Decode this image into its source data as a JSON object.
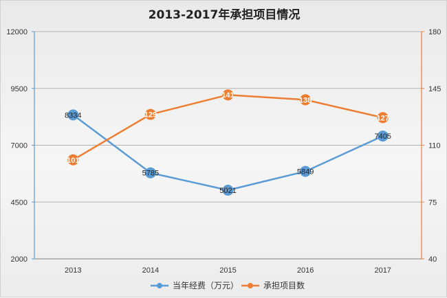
{
  "chart_data": {
    "type": "line",
    "title": "2013-2017年承担项目情况",
    "categories": [
      "2013",
      "2014",
      "2015",
      "2016",
      "2017"
    ],
    "y_left": {
      "min": 2000,
      "max": 12000,
      "ticks": [
        "2000",
        "4500",
        "7000",
        "9500",
        "12000"
      ]
    },
    "y_right": {
      "min": 40,
      "max": 180,
      "ticks": [
        "40",
        "75",
        "110",
        "145",
        "180"
      ]
    },
    "series": [
      {
        "name": "当年经费（万元）",
        "axis": "left",
        "color": "#5b9bd5",
        "values": [
          8334,
          5785,
          5021,
          5849,
          7405
        ]
      },
      {
        "name": "承担项目数",
        "axis": "right",
        "color": "#ed7d31",
        "values": [
          101,
          129,
          141,
          138,
          127
        ]
      }
    ],
    "legend_position": "bottom",
    "grid": true,
    "left_axis_color": "#5b9bd5",
    "right_axis_color": "#ed7d31"
  }
}
